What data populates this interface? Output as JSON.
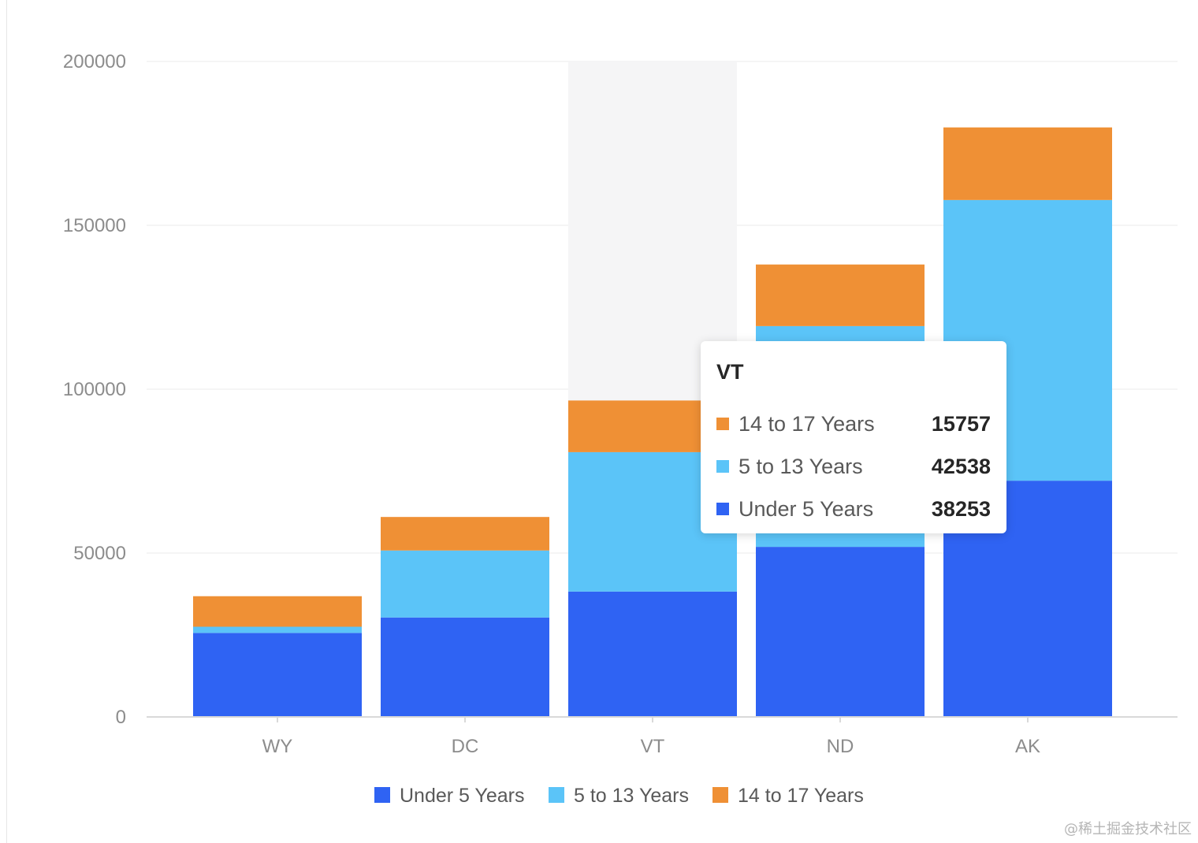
{
  "chart_data": {
    "type": "bar",
    "stacked": true,
    "categories": [
      "WY",
      "DC",
      "VT",
      "ND",
      "AK"
    ],
    "series": [
      {
        "name": "Under 5 Years",
        "color": "#2f63f3",
        "values": [
          25635,
          30352,
          38253,
          51896,
          72083
        ]
      },
      {
        "name": "5 to 13 Years",
        "color": "#5bc4f8",
        "values": [
          1890,
          20439,
          42538,
          67358,
          85640
        ]
      },
      {
        "name": "14 to 17 Years",
        "color": "#ef9035",
        "values": [
          9314,
          10225,
          15757,
          18794,
          22153
        ]
      }
    ],
    "yticks": [
      "0",
      "50000",
      "100000",
      "150000",
      "200000"
    ],
    "ylim": [
      0,
      200000
    ],
    "grid": true,
    "legend_position": "bottom",
    "highlighted_category": "VT"
  },
  "tooltip": {
    "title": "VT",
    "rows": [
      {
        "name": "14 to 17 Years",
        "value": "15757",
        "color": "#ef9035"
      },
      {
        "name": "5 to 13 Years",
        "value": "42538",
        "color": "#5bc4f8"
      },
      {
        "name": "Under 5 Years",
        "value": "38253",
        "color": "#2f63f3"
      }
    ]
  },
  "watermark": "@稀土掘金技术社区"
}
